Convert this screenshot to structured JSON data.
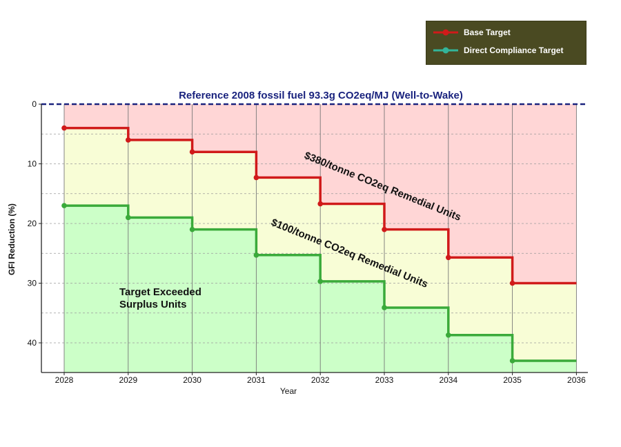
{
  "legend": {
    "base_label": "Base Target",
    "dc_label": "Direct Compliance Target"
  },
  "chart_data": {
    "type": "line",
    "step": "post",
    "title": "Reference 2008 fossil fuel 93.3g CO2eq/MJ (Well-to-Wake)",
    "xlabel": "Year",
    "ylabel": "GFI Reduction (%)",
    "x": [
      2028,
      2029,
      2030,
      2031,
      2032,
      2033,
      2034,
      2035,
      2036
    ],
    "xlim": [
      2028,
      2036
    ],
    "ylim": [
      0,
      45
    ],
    "y_inverted": true,
    "yticks": [
      0,
      10,
      20,
      30,
      40
    ],
    "grid": true,
    "legend_position": "top-right",
    "series": [
      {
        "name": "Base Target",
        "color": "#d01a1a",
        "values": [
          4,
          6,
          8,
          12.3,
          16.7,
          21,
          25.7,
          30,
          30
        ]
      },
      {
        "name": "Direct Compliance Target",
        "color": "#3aaa3a",
        "values": [
          17,
          19,
          21,
          25.3,
          29.7,
          34.1,
          38.7,
          43,
          43
        ]
      }
    ],
    "reference_line": {
      "value": 0,
      "color": "#1a237e",
      "style": "dashed"
    },
    "zone_colors": {
      "above_base": "#ffd6d6",
      "between": "#f8fdd6",
      "below_dc": "#ccffc8"
    },
    "annotations": [
      {
        "text": "$380/tonne CO2eq Remedial Units"
      },
      {
        "text": "$100/tonne CO2eq Remedial Units"
      },
      {
        "text": "Target Exceeded"
      },
      {
        "text": "Surplus Units"
      }
    ]
  }
}
